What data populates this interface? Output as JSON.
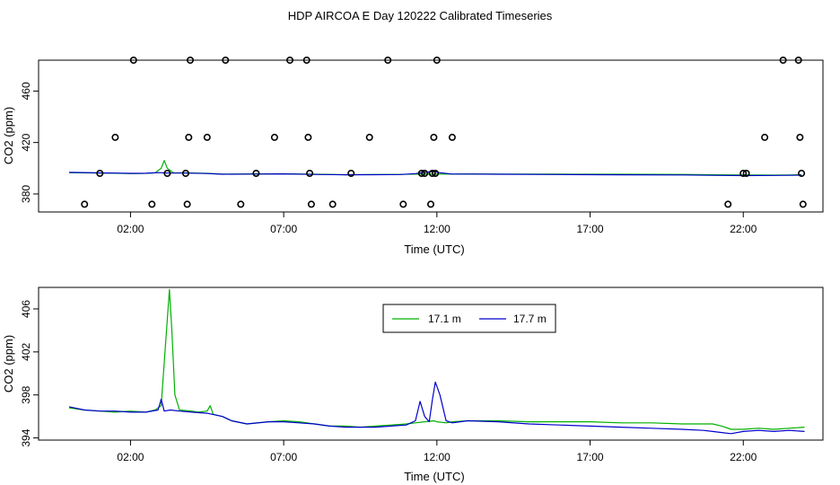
{
  "title": "HDP AIRCOA E  Day 120222  Calibrated Timeseries",
  "colors": {
    "green": "#00b000",
    "blue": "#0000cc",
    "axis": "#000000"
  },
  "chart_data": [
    {
      "type": "scatter",
      "xlabel": "Time (UTC)",
      "ylabel": "CO2 (ppm)",
      "x_unit": "hours UTC",
      "xlim": [
        -1.0,
        24.6
      ],
      "ylim": [
        366,
        484
      ],
      "x_ticks": [
        2,
        7,
        12,
        17,
        22
      ],
      "x_tick_labels": [
        "02:00",
        "07:00",
        "12:00",
        "17:00",
        "22:00"
      ],
      "y_ticks": [
        380,
        420,
        460
      ],
      "y_tick_labels": [
        "380",
        "420",
        "460"
      ],
      "grid": false,
      "lines": [
        {
          "color": "green",
          "points": [
            [
              0,
              396.5
            ],
            [
              1,
              396.3
            ],
            [
              1.5,
              396.1
            ],
            [
              2,
              395.8
            ],
            [
              2.4,
              395.9
            ],
            [
              2.8,
              396.4
            ],
            [
              3.0,
              400
            ],
            [
              3.1,
              406
            ],
            [
              3.2,
              400
            ],
            [
              3.4,
              396.5
            ],
            [
              3.8,
              396.4
            ],
            [
              4.5,
              396
            ],
            [
              5,
              395.4
            ],
            [
              6,
              395.6
            ],
            [
              7,
              395.7
            ],
            [
              8,
              395.3
            ],
            [
              9,
              395.0
            ],
            [
              10,
              395.1
            ],
            [
              10.8,
              395.2
            ],
            [
              11.5,
              395.5
            ],
            [
              11.9,
              395.4
            ],
            [
              12.5,
              395.5
            ],
            [
              13,
              395.6
            ],
            [
              14,
              395.5
            ],
            [
              16,
              395.4
            ],
            [
              18,
              395.3
            ],
            [
              20,
              395.2
            ],
            [
              21,
              394.9
            ],
            [
              22,
              394.7
            ],
            [
              23,
              394.6
            ],
            [
              23.5,
              394.8
            ],
            [
              23.9,
              394.9
            ]
          ]
        },
        {
          "color": "blue",
          "points": [
            [
              0,
              396.8
            ],
            [
              1,
              396.4
            ],
            [
              1.5,
              396.2
            ],
            [
              2,
              396.0
            ],
            [
              2.5,
              396.1
            ],
            [
              2.9,
              396.6
            ],
            [
              3.2,
              396.3
            ],
            [
              3.8,
              396.2
            ],
            [
              4.5,
              395.9
            ],
            [
              5,
              395.3
            ],
            [
              6,
              395.5
            ],
            [
              7,
              395.6
            ],
            [
              8,
              395.2
            ],
            [
              9,
              394.9
            ],
            [
              10,
              395.0
            ],
            [
              10.8,
              395.1
            ],
            [
              11.3,
              395.8
            ],
            [
              11.5,
              396.5
            ],
            [
              11.9,
              397.5
            ],
            [
              12.1,
              396.5
            ],
            [
              12.5,
              395.5
            ],
            [
              13,
              395.5
            ],
            [
              14,
              395.3
            ],
            [
              16,
              395.1
            ],
            [
              18,
              394.9
            ],
            [
              20,
              394.8
            ],
            [
              21,
              394.5
            ],
            [
              22,
              394.3
            ],
            [
              23,
              394.4
            ],
            [
              23.5,
              394.5
            ],
            [
              23.9,
              394.6
            ]
          ]
        }
      ],
      "points": [
        [
          0.5,
          372
        ],
        [
          1.0,
          396
        ],
        [
          1.5,
          424
        ],
        [
          2.1,
          484
        ],
        [
          2.7,
          372
        ],
        [
          3.2,
          396
        ],
        [
          3.8,
          396
        ],
        [
          3.85,
          372
        ],
        [
          3.9,
          424
        ],
        [
          3.95,
          484
        ],
        [
          4.5,
          424
        ],
        [
          5.1,
          484
        ],
        [
          5.6,
          372
        ],
        [
          6.1,
          396
        ],
        [
          6.7,
          424
        ],
        [
          7.2,
          484
        ],
        [
          7.75,
          484
        ],
        [
          7.8,
          424
        ],
        [
          7.85,
          396
        ],
        [
          7.9,
          372
        ],
        [
          8.6,
          372
        ],
        [
          9.2,
          396
        ],
        [
          9.8,
          424
        ],
        [
          10.4,
          484
        ],
        [
          10.9,
          372
        ],
        [
          11.5,
          396
        ],
        [
          11.6,
          396
        ],
        [
          11.8,
          372
        ],
        [
          11.85,
          396
        ],
        [
          11.9,
          424
        ],
        [
          11.95,
          396
        ],
        [
          12.0,
          484
        ],
        [
          12.5,
          424
        ],
        [
          21.5,
          372
        ],
        [
          22.0,
          396
        ],
        [
          22.1,
          396
        ],
        [
          22.7,
          424
        ],
        [
          23.3,
          484
        ],
        [
          23.8,
          484
        ],
        [
          23.85,
          424
        ],
        [
          23.9,
          396
        ],
        [
          23.95,
          372
        ]
      ]
    },
    {
      "type": "line",
      "xlabel": "Time (UTC)",
      "ylabel": "CO2 (ppm)",
      "x_unit": "hours UTC",
      "xlim": [
        -1.0,
        24.6
      ],
      "ylim": [
        393.8,
        408.0
      ],
      "x_ticks": [
        2,
        7,
        12,
        17,
        22
      ],
      "x_tick_labels": [
        "02:00",
        "07:00",
        "12:00",
        "17:00",
        "22:00"
      ],
      "y_ticks": [
        394,
        398,
        402,
        406
      ],
      "y_tick_labels": [
        "394",
        "398",
        "402",
        "406"
      ],
      "grid": false,
      "legend": "top-center",
      "series": [
        {
          "name": "17.1 m",
          "color": "green",
          "points": [
            [
              0,
              396.8
            ],
            [
              0.5,
              396.6
            ],
            [
              1,
              396.5
            ],
            [
              1.5,
              396.4
            ],
            [
              2,
              396.5
            ],
            [
              2.5,
              396.4
            ],
            [
              2.8,
              396.6
            ],
            [
              3.0,
              397
            ],
            [
              3.1,
              401
            ],
            [
              3.2,
              405
            ],
            [
              3.27,
              407.8
            ],
            [
              3.35,
              404
            ],
            [
              3.45,
              398
            ],
            [
              3.6,
              396.6
            ],
            [
              4.0,
              396.5
            ],
            [
              4.2,
              396.4
            ],
            [
              4.5,
              396.5
            ],
            [
              4.6,
              397
            ],
            [
              4.7,
              396.2
            ],
            [
              5.0,
              396.0
            ],
            [
              5.3,
              395.6
            ],
            [
              5.8,
              395.3
            ],
            [
              6.5,
              395.5
            ],
            [
              7,
              395.6
            ],
            [
              7.5,
              395.5
            ],
            [
              8,
              395.3
            ],
            [
              8.5,
              395.1
            ],
            [
              9,
              395.1
            ],
            [
              9.5,
              395.0
            ],
            [
              10,
              395.1
            ],
            [
              10.5,
              395.2
            ],
            [
              11,
              395.3
            ],
            [
              11.3,
              395.4
            ],
            [
              11.6,
              395.5
            ],
            [
              11.9,
              395.6
            ],
            [
              12.0,
              395.5
            ],
            [
              12.3,
              395.4
            ],
            [
              12.5,
              395.5
            ],
            [
              13,
              395.6
            ],
            [
              14,
              395.6
            ],
            [
              15,
              395.5
            ],
            [
              16,
              395.5
            ],
            [
              17,
              395.5
            ],
            [
              18,
              395.4
            ],
            [
              19,
              395.4
            ],
            [
              20,
              395.3
            ],
            [
              20.7,
              395.3
            ],
            [
              21,
              395.3
            ],
            [
              21.3,
              395.1
            ],
            [
              21.6,
              394.8
            ],
            [
              22,
              394.8
            ],
            [
              22.5,
              394.9
            ],
            [
              23,
              394.8
            ],
            [
              23.5,
              394.9
            ],
            [
              24.0,
              395.0
            ]
          ]
        },
        {
          "name": "17.7 m",
          "color": "blue",
          "points": [
            [
              0,
              396.9
            ],
            [
              0.5,
              396.6
            ],
            [
              1,
              396.5
            ],
            [
              1.5,
              396.5
            ],
            [
              2,
              396.4
            ],
            [
              2.5,
              396.4
            ],
            [
              2.9,
              396.6
            ],
            [
              3.0,
              397.6
            ],
            [
              3.1,
              396.5
            ],
            [
              3.3,
              396.6
            ],
            [
              3.6,
              396.5
            ],
            [
              4.0,
              396.4
            ],
            [
              4.5,
              396.3
            ],
            [
              5.0,
              396.0
            ],
            [
              5.3,
              395.6
            ],
            [
              5.8,
              395.3
            ],
            [
              6.5,
              395.5
            ],
            [
              7,
              395.5
            ],
            [
              7.5,
              395.4
            ],
            [
              8,
              395.3
            ],
            [
              8.5,
              395.1
            ],
            [
              9,
              395.0
            ],
            [
              9.5,
              395.0
            ],
            [
              10,
              395.0
            ],
            [
              10.5,
              395.1
            ],
            [
              11,
              395.2
            ],
            [
              11.3,
              395.6
            ],
            [
              11.45,
              397.4
            ],
            [
              11.6,
              396.0
            ],
            [
              11.75,
              395.5
            ],
            [
              11.85,
              397.5
            ],
            [
              11.95,
              399.2
            ],
            [
              12.1,
              398.0
            ],
            [
              12.3,
              395.6
            ],
            [
              12.5,
              395.4
            ],
            [
              13,
              395.6
            ],
            [
              14,
              395.5
            ],
            [
              15,
              395.3
            ],
            [
              16,
              395.2
            ],
            [
              17,
              395.1
            ],
            [
              18,
              395.0
            ],
            [
              19,
              394.9
            ],
            [
              20,
              394.8
            ],
            [
              20.7,
              394.7
            ],
            [
              21,
              394.6
            ],
            [
              21.3,
              394.5
            ],
            [
              21.6,
              394.4
            ],
            [
              22,
              394.6
            ],
            [
              22.5,
              394.7
            ],
            [
              23,
              394.6
            ],
            [
              23.5,
              394.7
            ],
            [
              24.0,
              394.6
            ]
          ]
        }
      ]
    }
  ]
}
